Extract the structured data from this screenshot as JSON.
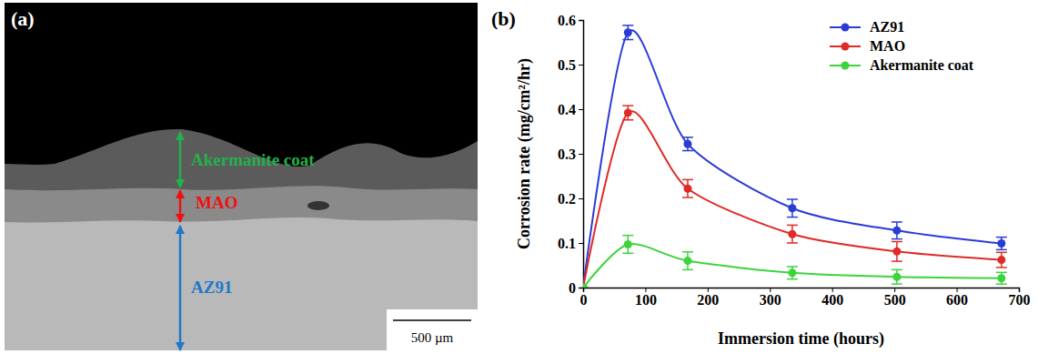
{
  "chart_data": {
    "type": "line",
    "title": "(b)",
    "x_label": "Immersion time (hours)",
    "y_label": "Corrosion rate (mg/cm²/hr)",
    "x": [
      0,
      72,
      168,
      336,
      504,
      672
    ],
    "series": [
      {
        "name": "AZ91",
        "color": "#2a3bd6",
        "values": [
          0,
          0.572,
          0.322,
          0.178,
          0.128,
          0.099
        ],
        "errors": [
          0,
          0.016,
          0.015,
          0.02,
          0.019,
          0.014
        ]
      },
      {
        "name": "MAO",
        "color": "#e02a25",
        "values": [
          0,
          0.392,
          0.222,
          0.12,
          0.081,
          0.062
        ],
        "errors": [
          0,
          0.016,
          0.02,
          0.02,
          0.022,
          0.017
        ]
      },
      {
        "name": "Akermanite coat",
        "color": "#3cd43c",
        "values": [
          0,
          0.097,
          0.06,
          0.033,
          0.024,
          0.021
        ],
        "errors": [
          0,
          0.02,
          0.02,
          0.014,
          0.016,
          0.013
        ]
      }
    ],
    "xlim": [
      0,
      700
    ],
    "xticks": [
      0,
      100,
      200,
      300,
      400,
      500,
      600,
      700
    ],
    "ylim": [
      0,
      0.6
    ],
    "yticks": [
      0,
      0.1,
      0.2,
      0.3,
      0.4,
      0.5,
      0.6
    ],
    "marker": "circle",
    "line_style": "smooth",
    "legend": "top-right",
    "grid": false
  },
  "micrograph": {
    "label": "(a)",
    "layers": [
      {
        "name": "Akermanite coat",
        "color": "#22b14c"
      },
      {
        "name": "MAO",
        "color": "#ee1111"
      },
      {
        "name": "AZ91",
        "color": "#1f78c8"
      }
    ],
    "scale_bar": "500 µm"
  }
}
